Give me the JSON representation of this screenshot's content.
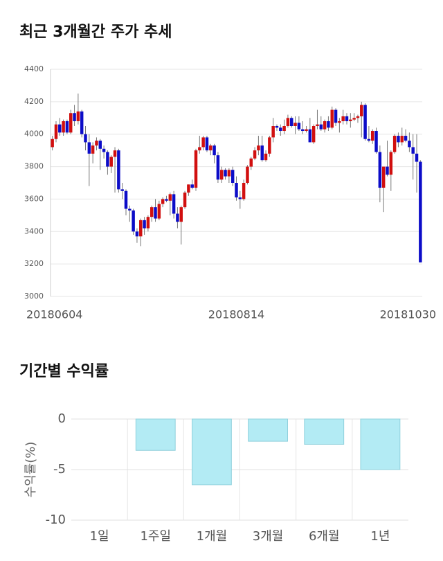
{
  "chart_data": [
    {
      "type": "candlestick",
      "title": "최근 3개월간 주가 추세",
      "categories": [
        "20180604",
        null,
        null,
        null,
        null,
        null,
        null,
        null,
        null,
        null,
        null,
        null,
        null,
        null,
        null,
        null,
        null,
        null,
        null,
        null,
        null,
        null,
        null,
        null,
        null,
        null,
        null,
        null,
        null,
        null,
        null,
        null,
        null,
        null,
        null,
        null,
        null,
        null,
        null,
        null,
        null,
        null,
        null,
        null,
        null,
        null,
        null,
        null,
        null,
        null,
        "20180814",
        null,
        null,
        null,
        null,
        null,
        null,
        null,
        null,
        null,
        null,
        null,
        null,
        null,
        null,
        null,
        null,
        null,
        null,
        null,
        null,
        null,
        null,
        null,
        null,
        null,
        null,
        null,
        null,
        null,
        null,
        null,
        null,
        null,
        null,
        null,
        null,
        null,
        null,
        null,
        null,
        null,
        null,
        null,
        null,
        null,
        null,
        null,
        null,
        null,
        "20181030"
      ],
      "open": [
        3920,
        3970,
        4060,
        4010,
        4080,
        4010,
        4130,
        4080,
        4140,
        4000,
        3950,
        3880,
        3930,
        3960,
        3910,
        3890,
        3800,
        3860,
        3900,
        3660,
        3650,
        3540,
        3530,
        3400,
        3370,
        3470,
        3420,
        3490,
        3550,
        3480,
        3570,
        3600,
        3590,
        3630,
        3510,
        3460,
        3550,
        3640,
        3690,
        3670,
        3900,
        3920,
        3980,
        3900,
        3930,
        3870,
        3720,
        3780,
        3740,
        3780,
        3700,
        3610,
        3600,
        3700,
        3800,
        3850,
        3900,
        3930,
        3840,
        3880,
        3980,
        4050,
        4040,
        4020,
        4050,
        4100,
        4050,
        4070,
        4030,
        4020,
        4030,
        3950,
        4050,
        4060,
        4030,
        4080,
        4040,
        4150,
        4070,
        4080,
        4110,
        4080,
        4090,
        4100,
        4110,
        4180,
        3970,
        3960,
        4020,
        3890,
        3670,
        3800,
        3750,
        3890,
        3990,
        3950,
        3990,
        3960,
        3920,
        3880,
        3830
      ],
      "high": [
        3990,
        4080,
        4100,
        4090,
        4090,
        4150,
        4180,
        4250,
        4150,
        4050,
        4000,
        3950,
        3980,
        3970,
        3930,
        3900,
        3870,
        3920,
        3910,
        3700,
        3660,
        3560,
        3540,
        3420,
        3480,
        3490,
        3500,
        3560,
        3600,
        3590,
        3610,
        3620,
        3640,
        3650,
        3550,
        3560,
        3650,
        3690,
        3720,
        3910,
        3990,
        3990,
        3990,
        3940,
        3940,
        3890,
        3800,
        3790,
        3790,
        3800,
        3740,
        3650,
        3720,
        3810,
        3860,
        3920,
        3990,
        3990,
        3900,
        3990,
        4100,
        4060,
        4060,
        4090,
        4120,
        4110,
        4110,
        4110,
        4080,
        4050,
        4100,
        4060,
        4150,
        4110,
        4090,
        4110,
        4170,
        4160,
        4100,
        4150,
        4130,
        4130,
        4130,
        4120,
        4200,
        4190,
        4050,
        4030,
        4040,
        3930,
        3800,
        3960,
        3900,
        4000,
        4010,
        4040,
        4030,
        4010,
        4000,
        4000,
        3840
      ],
      "low": [
        3900,
        3950,
        3990,
        3990,
        4000,
        4000,
        4050,
        4060,
        3980,
        3900,
        3680,
        3820,
        3900,
        3780,
        3850,
        3750,
        3760,
        3640,
        3640,
        3600,
        3500,
        3460,
        3380,
        3330,
        3310,
        3380,
        3400,
        3460,
        3460,
        3470,
        3550,
        3580,
        3500,
        3480,
        3420,
        3320,
        3540,
        3620,
        3660,
        3650,
        3880,
        3900,
        3890,
        3870,
        3820,
        3700,
        3700,
        3720,
        3700,
        3680,
        3590,
        3540,
        3590,
        3690,
        3780,
        3840,
        3870,
        3830,
        3830,
        3860,
        3950,
        4020,
        3990,
        4000,
        4040,
        4040,
        4000,
        4020,
        4000,
        4010,
        3950,
        3940,
        4030,
        4020,
        4010,
        4020,
        4030,
        4050,
        4010,
        4060,
        4060,
        4040,
        4080,
        4070,
        3980,
        3960,
        3950,
        3940,
        3880,
        3580,
        3520,
        3740,
        3650,
        3880,
        3920,
        3930,
        3950,
        3890,
        3720,
        3640,
        3210
      ],
      "close": [
        3970,
        4060,
        4010,
        4080,
        4010,
        4130,
        4080,
        4140,
        4000,
        3950,
        3880,
        3930,
        3960,
        3910,
        3890,
        3800,
        3860,
        3900,
        3660,
        3650,
        3540,
        3530,
        3400,
        3370,
        3470,
        3420,
        3490,
        3550,
        3480,
        3570,
        3600,
        3590,
        3630,
        3510,
        3460,
        3550,
        3640,
        3690,
        3670,
        3900,
        3920,
        3980,
        3900,
        3930,
        3870,
        3720,
        3780,
        3740,
        3780,
        3700,
        3610,
        3600,
        3700,
        3800,
        3850,
        3900,
        3930,
        3840,
        3880,
        3980,
        4050,
        4040,
        4020,
        4050,
        4100,
        4050,
        4070,
        4030,
        4020,
        4030,
        3950,
        4050,
        4060,
        4030,
        4080,
        4040,
        4150,
        4070,
        4080,
        4110,
        4080,
        4090,
        4100,
        4110,
        4180,
        3970,
        3960,
        4020,
        3890,
        3670,
        3800,
        3750,
        3890,
        3990,
        3950,
        3990,
        3960,
        3920,
        3880,
        3830,
        3210
      ],
      "up_color": "#d10f0f",
      "down_color": "#0c0cc8",
      "ylim": [
        3000,
        4400
      ],
      "yticks": [
        3000,
        3200,
        3400,
        3600,
        3800,
        4000,
        4200,
        4400
      ],
      "grid": true
    },
    {
      "type": "bar",
      "title": "기간별 수익률",
      "y_label": "수익률(%)",
      "categories": [
        "1일",
        "1주일",
        "1개월",
        "3개월",
        "6개월",
        "1년"
      ],
      "values": [
        0,
        -3.1,
        -6.5,
        -2.2,
        -2.5,
        -5.0
      ],
      "color": "#b3ebf4",
      "edge_color": "#8fd0dc",
      "ylim": [
        -10,
        0
      ],
      "yticks": [
        0,
        -5,
        -10
      ],
      "grid": true
    }
  ]
}
